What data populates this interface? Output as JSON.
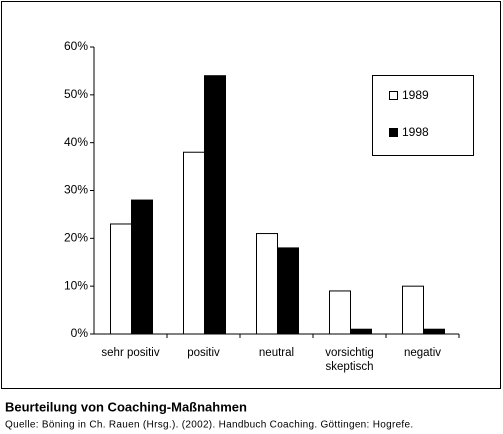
{
  "chart_data": {
    "type": "bar",
    "title": "Beurteilung von Coaching-Maßnahmen",
    "subtitle": "Quelle: Böning in Ch. Rauen (Hrsg.). (2002). Handbuch Coaching. Göttingen: Hogrefe.",
    "categories": [
      "sehr positiv",
      "positiv",
      "neutral",
      "vorsichtig skeptisch",
      "negativ"
    ],
    "series": [
      {
        "name": "1989",
        "color": "#ffffff",
        "values": [
          23,
          38,
          21,
          9,
          10
        ]
      },
      {
        "name": "1998",
        "color": "#000000",
        "values": [
          28,
          54,
          18,
          1,
          1
        ]
      }
    ],
    "ylim": [
      0,
      60
    ],
    "yticks": [
      {
        "value": 0,
        "label": "0%"
      },
      {
        "value": 10,
        "label": "10%"
      },
      {
        "value": 20,
        "label": "20%"
      },
      {
        "value": 30,
        "label": "30%"
      },
      {
        "value": 40,
        "label": "40%"
      },
      {
        "value": 50,
        "label": "50%"
      },
      {
        "value": 60,
        "label": "60%"
      }
    ],
    "grid": false,
    "legend": "right"
  }
}
